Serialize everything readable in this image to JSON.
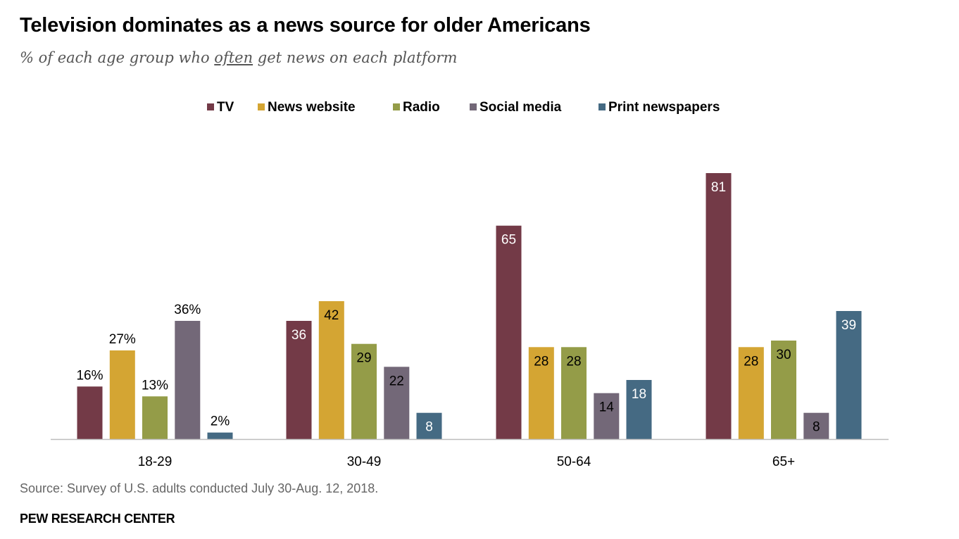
{
  "title": "Television dominates as a news source for older Americans",
  "subtitle": {
    "before": "% of each age group who ",
    "underlined": "often",
    "after": " get news on each platform"
  },
  "legend": [
    {
      "label": "TV",
      "color": "#733A47"
    },
    {
      "label": "News website",
      "color": "#D4A533"
    },
    {
      "label": "Radio",
      "color": "#949C48"
    },
    {
      "label": "Social media",
      "color": "#736878"
    },
    {
      "label": "Print newspapers",
      "color": "#456A83"
    }
  ],
  "chart_data": {
    "type": "bar",
    "categories": [
      "18-29",
      "30-49",
      "50-64",
      "65+"
    ],
    "series": [
      {
        "name": "TV",
        "color": "#733A47",
        "values": [
          16,
          36,
          65,
          81
        ],
        "labels": [
          "16%",
          "36",
          "65",
          "81"
        ]
      },
      {
        "name": "News website",
        "color": "#D4A533",
        "values": [
          27,
          42,
          28,
          28
        ],
        "labels": [
          "27%",
          "42",
          "28",
          "28"
        ]
      },
      {
        "name": "Radio",
        "color": "#949C48",
        "values": [
          13,
          29,
          28,
          30
        ],
        "labels": [
          "13%",
          "29",
          "28",
          "30"
        ]
      },
      {
        "name": "Social media",
        "color": "#736878",
        "values": [
          36,
          22,
          14,
          8
        ],
        "labels": [
          "36%",
          "22",
          "14",
          "8"
        ]
      },
      {
        "name": "Print newspapers",
        "color": "#456A83",
        "values": [
          2,
          8,
          18,
          39
        ],
        "labels": [
          "2%",
          "8",
          "18",
          "39"
        ]
      }
    ],
    "ylim": [
      0,
      81
    ],
    "grid": false,
    "legend_position": "top-center"
  },
  "source": "Source: Survey of U.S. adults conducted July 30-Aug. 12, 2018.",
  "organization": "PEW RESEARCH CENTER"
}
